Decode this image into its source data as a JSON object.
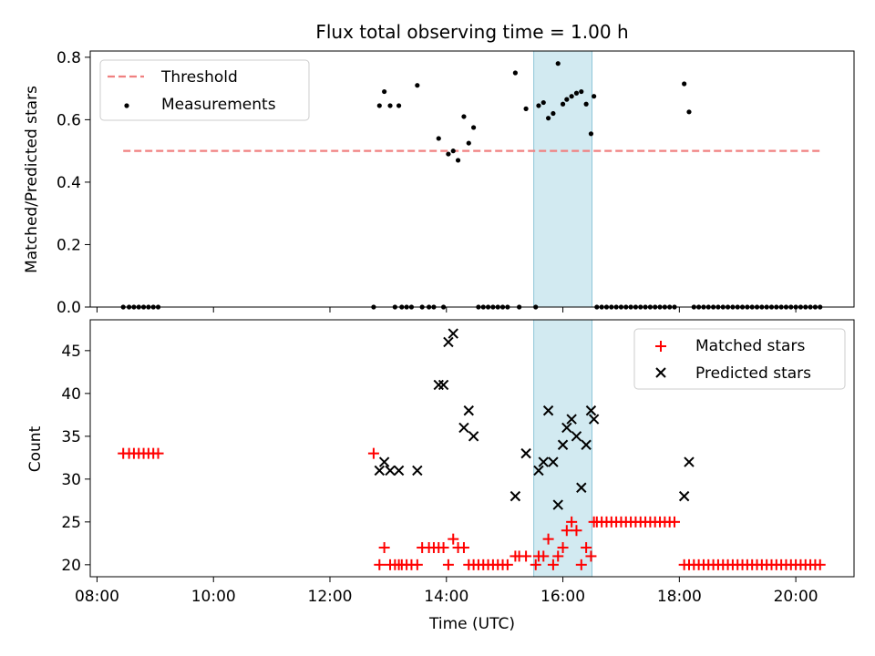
{
  "chart_data": [
    {
      "type": "scatter",
      "title": "Flux total observing time = 1.00 h",
      "xlabel": "",
      "ylabel": "Matched/Predicted stars",
      "ylim": [
        0,
        0.82
      ],
      "yticks": [
        0.0,
        0.2,
        0.4,
        0.6,
        0.8
      ],
      "ytick_labels": [
        "0.0",
        "0.2",
        "0.4",
        "0.6",
        "0.8"
      ],
      "xlim": [
        "07:53",
        "21:00"
      ],
      "xticks": [
        "08:00",
        "10:00",
        "12:00",
        "14:00",
        "16:00",
        "18:00",
        "20:00"
      ],
      "legend_position": "top-left",
      "shaded_interval": {
        "start": "15:30",
        "end": "16:30",
        "color": "#add8e6"
      },
      "threshold": {
        "name": "Threshold",
        "value": 0.5,
        "x_start": "08:27",
        "x_end": "20:27",
        "color": "#f08080",
        "style": "dashed"
      },
      "series": [
        {
          "name": "Measurements",
          "color": "#000000",
          "marker": "dot",
          "points": [
            [
              "08:27",
              0
            ],
            [
              "08:33",
              0
            ],
            [
              "08:38",
              0
            ],
            [
              "08:43",
              0
            ],
            [
              "08:48",
              0
            ],
            [
              "08:53",
              0
            ],
            [
              "08:58",
              0
            ],
            [
              "09:03",
              0
            ],
            [
              "12:45",
              0
            ],
            [
              "12:51",
              0.645
            ],
            [
              "12:56",
              0.69
            ],
            [
              "13:02",
              0.645
            ],
            [
              "13:07",
              0
            ],
            [
              "13:11",
              0.645
            ],
            [
              "13:14",
              0
            ],
            [
              "13:19",
              0
            ],
            [
              "13:24",
              0
            ],
            [
              "13:30",
              0.71
            ],
            [
              "13:35",
              0
            ],
            [
              "13:42",
              0
            ],
            [
              "13:47",
              0
            ],
            [
              "13:52",
              0.54
            ],
            [
              "13:57",
              0
            ],
            [
              "14:02",
              0.49
            ],
            [
              "14:07",
              0.5
            ],
            [
              "14:12",
              0.47
            ],
            [
              "14:18",
              0.61
            ],
            [
              "14:23",
              0.525
            ],
            [
              "14:28",
              0.575
            ],
            [
              "14:33",
              0
            ],
            [
              "14:38",
              0
            ],
            [
              "14:43",
              0
            ],
            [
              "14:48",
              0
            ],
            [
              "14:53",
              0
            ],
            [
              "14:58",
              0
            ],
            [
              "15:03",
              0
            ],
            [
              "15:11",
              0.75
            ],
            [
              "15:22",
              0.635
            ],
            [
              "15:15",
              0
            ],
            [
              "15:32",
              0
            ],
            [
              "15:35",
              0.645
            ],
            [
              "15:40",
              0.655
            ],
            [
              "15:45",
              0.605
            ],
            [
              "15:50",
              0.62
            ],
            [
              "15:55",
              0.78
            ],
            [
              "16:00",
              0.65
            ],
            [
              "16:04",
              0.665
            ],
            [
              "16:09",
              0.675
            ],
            [
              "16:14",
              0.685
            ],
            [
              "16:19",
              0.69
            ],
            [
              "16:24",
              0.65
            ],
            [
              "16:29",
              0.555
            ],
            [
              "16:32",
              0.675
            ],
            [
              "16:35",
              0
            ],
            [
              "16:40",
              0
            ],
            [
              "16:45",
              0
            ],
            [
              "16:50",
              0
            ],
            [
              "16:55",
              0
            ],
            [
              "17:00",
              0
            ],
            [
              "17:05",
              0
            ],
            [
              "17:10",
              0
            ],
            [
              "17:15",
              0
            ],
            [
              "17:20",
              0
            ],
            [
              "17:25",
              0
            ],
            [
              "17:30",
              0
            ],
            [
              "17:35",
              0
            ],
            [
              "17:40",
              0
            ],
            [
              "17:45",
              0
            ],
            [
              "17:50",
              0
            ],
            [
              "17:55",
              0
            ],
            [
              "18:05",
              0.715
            ],
            [
              "18:10",
              0.625
            ],
            [
              "18:15",
              0
            ],
            [
              "18:20",
              0
            ],
            [
              "18:25",
              0
            ],
            [
              "18:30",
              0
            ],
            [
              "18:35",
              0
            ],
            [
              "18:40",
              0
            ],
            [
              "18:45",
              0
            ],
            [
              "18:50",
              0
            ],
            [
              "18:55",
              0
            ],
            [
              "19:00",
              0
            ],
            [
              "19:05",
              0
            ],
            [
              "19:10",
              0
            ],
            [
              "19:15",
              0
            ],
            [
              "19:20",
              0
            ],
            [
              "19:25",
              0
            ],
            [
              "19:30",
              0
            ],
            [
              "19:35",
              0
            ],
            [
              "19:40",
              0
            ],
            [
              "19:45",
              0
            ],
            [
              "19:50",
              0
            ],
            [
              "19:55",
              0
            ],
            [
              "20:00",
              0
            ],
            [
              "20:05",
              0
            ],
            [
              "20:10",
              0
            ],
            [
              "20:15",
              0
            ],
            [
              "20:20",
              0
            ],
            [
              "20:25",
              0
            ]
          ]
        }
      ]
    },
    {
      "type": "scatter",
      "title": "",
      "xlabel": "Time (UTC)",
      "ylabel": "Count",
      "ylim": [
        18.6,
        48.6
      ],
      "yticks": [
        20,
        25,
        30,
        35,
        40,
        45
      ],
      "ytick_labels": [
        "20",
        "25",
        "30",
        "35",
        "40",
        "45"
      ],
      "xlim": [
        "07:53",
        "21:00"
      ],
      "xticks": [
        "08:00",
        "10:00",
        "12:00",
        "14:00",
        "16:00",
        "18:00",
        "20:00"
      ],
      "xtick_labels": [
        "08:00",
        "10:00",
        "12:00",
        "14:00",
        "16:00",
        "18:00",
        "20:00"
      ],
      "legend_position": "top-right",
      "shaded_interval": {
        "start": "15:30",
        "end": "16:30",
        "color": "#add8e6"
      },
      "series": [
        {
          "name": "Matched stars",
          "color": "#ff0000",
          "marker": "plus",
          "points": [
            [
              "08:27",
              33
            ],
            [
              "08:33",
              33
            ],
            [
              "08:38",
              33
            ],
            [
              "08:43",
              33
            ],
            [
              "08:48",
              33
            ],
            [
              "08:53",
              33
            ],
            [
              "08:58",
              33
            ],
            [
              "09:03",
              33
            ],
            [
              "12:45",
              33
            ],
            [
              "12:51",
              20
            ],
            [
              "12:56",
              22
            ],
            [
              "13:02",
              20
            ],
            [
              "13:07",
              20
            ],
            [
              "13:11",
              20
            ],
            [
              "13:14",
              20
            ],
            [
              "13:19",
              20
            ],
            [
              "13:24",
              20
            ],
            [
              "13:30",
              20
            ],
            [
              "13:35",
              22
            ],
            [
              "13:42",
              22
            ],
            [
              "13:47",
              22
            ],
            [
              "13:52",
              22
            ],
            [
              "13:57",
              22
            ],
            [
              "14:02",
              20
            ],
            [
              "14:07",
              23
            ],
            [
              "14:12",
              22
            ],
            [
              "14:18",
              22
            ],
            [
              "14:23",
              20
            ],
            [
              "14:28",
              20
            ],
            [
              "14:33",
              20
            ],
            [
              "14:38",
              20
            ],
            [
              "14:43",
              20
            ],
            [
              "14:48",
              20
            ],
            [
              "14:53",
              20
            ],
            [
              "14:58",
              20
            ],
            [
              "15:03",
              20
            ],
            [
              "15:11",
              21
            ],
            [
              "15:15",
              21
            ],
            [
              "15:22",
              21
            ],
            [
              "15:32",
              20
            ],
            [
              "15:35",
              21
            ],
            [
              "15:40",
              21
            ],
            [
              "15:45",
              23
            ],
            [
              "15:50",
              20
            ],
            [
              "15:55",
              21
            ],
            [
              "16:00",
              22
            ],
            [
              "16:04",
              24
            ],
            [
              "16:09",
              25
            ],
            [
              "16:14",
              24
            ],
            [
              "16:19",
              20
            ],
            [
              "16:24",
              22
            ],
            [
              "16:29",
              21
            ],
            [
              "16:32",
              25
            ],
            [
              "16:35",
              25
            ],
            [
              "16:40",
              25
            ],
            [
              "16:45",
              25
            ],
            [
              "16:50",
              25
            ],
            [
              "16:55",
              25
            ],
            [
              "17:00",
              25
            ],
            [
              "17:05",
              25
            ],
            [
              "17:10",
              25
            ],
            [
              "17:15",
              25
            ],
            [
              "17:20",
              25
            ],
            [
              "17:25",
              25
            ],
            [
              "17:30",
              25
            ],
            [
              "17:35",
              25
            ],
            [
              "17:40",
              25
            ],
            [
              "17:45",
              25
            ],
            [
              "17:50",
              25
            ],
            [
              "17:55",
              25
            ],
            [
              "18:05",
              20
            ],
            [
              "18:10",
              20
            ],
            [
              "18:15",
              20
            ],
            [
              "18:20",
              20
            ],
            [
              "18:25",
              20
            ],
            [
              "18:30",
              20
            ],
            [
              "18:35",
              20
            ],
            [
              "18:40",
              20
            ],
            [
              "18:45",
              20
            ],
            [
              "18:50",
              20
            ],
            [
              "18:55",
              20
            ],
            [
              "19:00",
              20
            ],
            [
              "19:05",
              20
            ],
            [
              "19:10",
              20
            ],
            [
              "19:15",
              20
            ],
            [
              "19:20",
              20
            ],
            [
              "19:25",
              20
            ],
            [
              "19:30",
              20
            ],
            [
              "19:35",
              20
            ],
            [
              "19:40",
              20
            ],
            [
              "19:45",
              20
            ],
            [
              "19:50",
              20
            ],
            [
              "19:55",
              20
            ],
            [
              "20:00",
              20
            ],
            [
              "20:05",
              20
            ],
            [
              "20:10",
              20
            ],
            [
              "20:15",
              20
            ],
            [
              "20:20",
              20
            ],
            [
              "20:25",
              20
            ]
          ]
        },
        {
          "name": "Predicted stars",
          "color": "#000000",
          "marker": "x",
          "points": [
            [
              "12:51",
              31
            ],
            [
              "12:56",
              32
            ],
            [
              "13:02",
              31
            ],
            [
              "13:11",
              31
            ],
            [
              "13:30",
              31
            ],
            [
              "13:52",
              41
            ],
            [
              "13:57",
              41
            ],
            [
              "14:02",
              46
            ],
            [
              "14:07",
              47
            ],
            [
              "14:18",
              36
            ],
            [
              "14:23",
              38
            ],
            [
              "14:28",
              35
            ],
            [
              "15:11",
              28
            ],
            [
              "15:22",
              33
            ],
            [
              "15:35",
              31
            ],
            [
              "15:40",
              32
            ],
            [
              "15:45",
              38
            ],
            [
              "15:50",
              32
            ],
            [
              "15:55",
              27
            ],
            [
              "16:00",
              34
            ],
            [
              "16:04",
              36
            ],
            [
              "16:09",
              37
            ],
            [
              "16:14",
              35
            ],
            [
              "16:19",
              29
            ],
            [
              "16:24",
              34
            ],
            [
              "16:29",
              38
            ],
            [
              "16:32",
              37
            ],
            [
              "18:05",
              28
            ],
            [
              "18:10",
              32
            ]
          ]
        }
      ]
    }
  ]
}
